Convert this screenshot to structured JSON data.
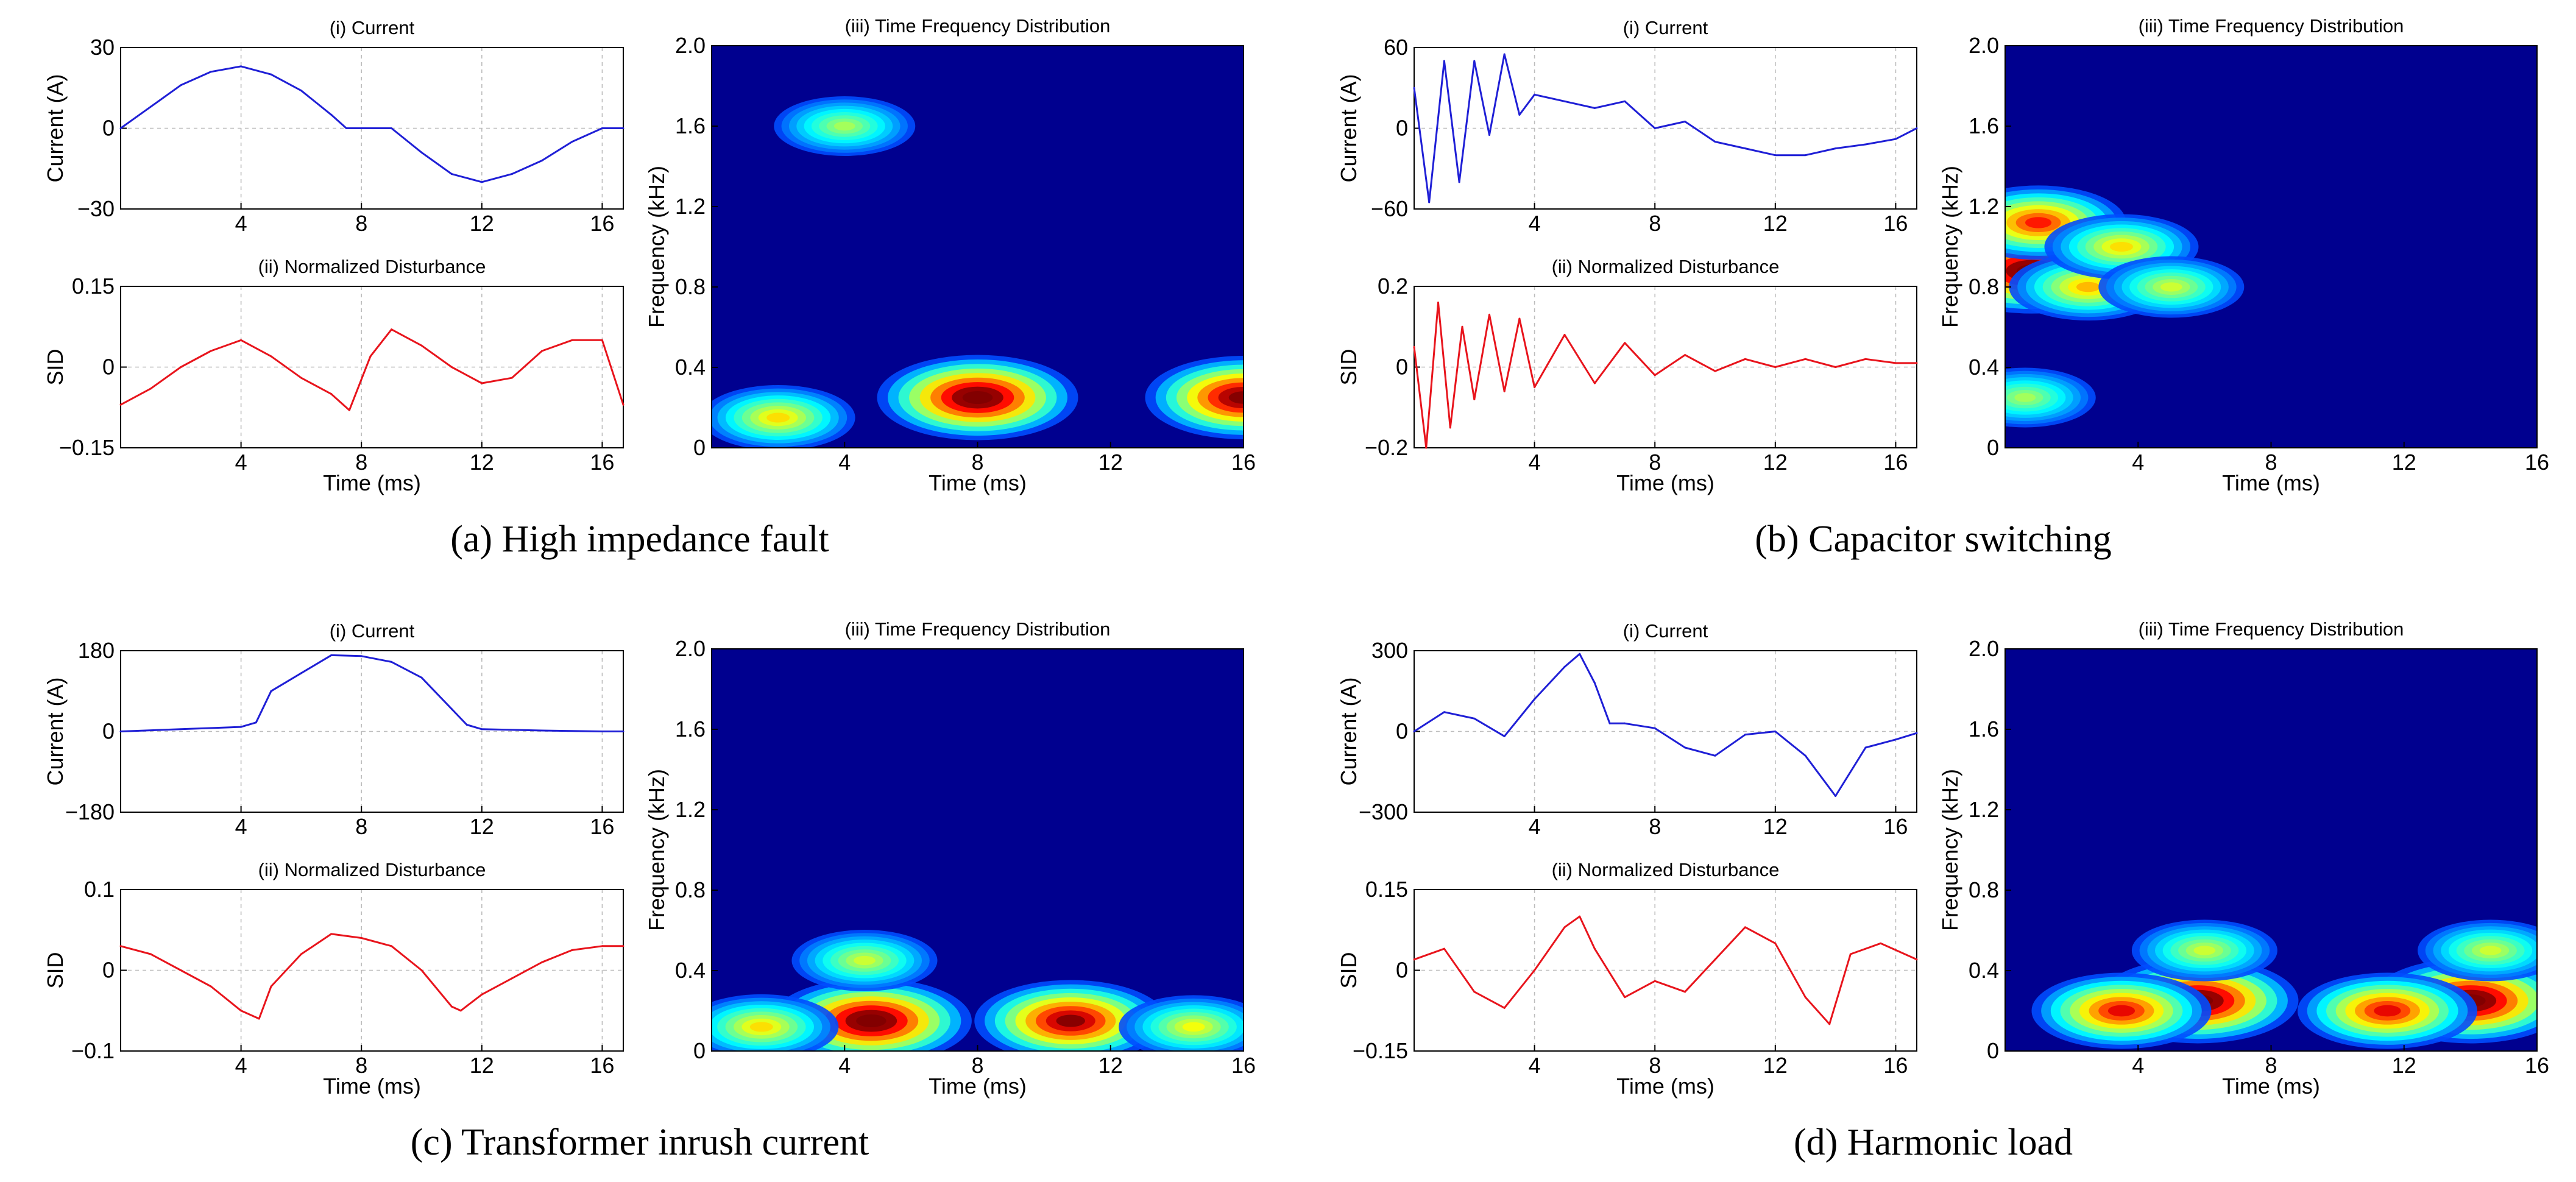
{
  "panels": [
    {
      "id": "a",
      "caption": "(a) High impedance fault",
      "current": {
        "title": "(i) Current",
        "ylabel": "Current (A)",
        "yticks": [
          "30",
          "0",
          "−30"
        ],
        "xticks": [
          "4",
          "8",
          "12",
          "16"
        ]
      },
      "disturbance": {
        "title": "(ii) Normalized Disturbance",
        "ylabel": "SID",
        "xlabel": "Time (ms)",
        "yticks": [
          "0.15",
          "0",
          "−0.15"
        ],
        "xticks": [
          "4",
          "8",
          "12",
          "16"
        ]
      },
      "tfd": {
        "title": "(iii) Time Frequency Distribution",
        "ylabel": "Frequency (kHz)",
        "xlabel": "Time (ms)",
        "yticks": [
          "2.0",
          "1.6",
          "1.2",
          "0.8",
          "0.4",
          "0"
        ],
        "xticks": [
          "4",
          "8",
          "12",
          "16"
        ]
      }
    },
    {
      "id": "b",
      "caption": "(b) Capacitor switching",
      "current": {
        "title": "(i) Current",
        "ylabel": "Current (A)",
        "yticks": [
          "60",
          "0",
          "−60"
        ],
        "xticks": [
          "4",
          "8",
          "12",
          "16"
        ]
      },
      "disturbance": {
        "title": "(ii) Normalized Disturbance",
        "ylabel": "SID",
        "xlabel": "Time (ms)",
        "yticks": [
          "0.2",
          "0",
          "−0.2"
        ],
        "xticks": [
          "4",
          "8",
          "12",
          "16"
        ]
      },
      "tfd": {
        "title": "(iii) Time Frequency Distribution",
        "ylabel": "Frequency (kHz)",
        "xlabel": "Time (ms)",
        "yticks": [
          "2.0",
          "1.6",
          "1.2",
          "0.8",
          "0.4",
          "0"
        ],
        "xticks": [
          "4",
          "8",
          "12",
          "16"
        ]
      }
    },
    {
      "id": "c",
      "caption": "(c) Transformer inrush current",
      "current": {
        "title": "(i) Current",
        "ylabel": "Current (A)",
        "yticks": [
          "180",
          "0",
          "−180"
        ],
        "xticks": [
          "4",
          "8",
          "12",
          "16"
        ]
      },
      "disturbance": {
        "title": "(ii) Normalized Disturbance",
        "ylabel": "SID",
        "xlabel": "Time (ms)",
        "yticks": [
          "0.1",
          "0",
          "−0.1"
        ],
        "xticks": [
          "4",
          "8",
          "12",
          "16"
        ]
      },
      "tfd": {
        "title": "(iii) Time Frequency Distribution",
        "ylabel": "Frequency (kHz)",
        "xlabel": "Time (ms)",
        "yticks": [
          "2.0",
          "1.6",
          "1.2",
          "0.8",
          "0.4",
          "0"
        ],
        "xticks": [
          "4",
          "8",
          "12",
          "16"
        ]
      }
    },
    {
      "id": "d",
      "caption": "(d) Harmonic load",
      "current": {
        "title": "(i) Current",
        "ylabel": "Current (A)",
        "yticks": [
          "300",
          "0",
          "−300"
        ],
        "xticks": [
          "4",
          "8",
          "12",
          "16"
        ]
      },
      "disturbance": {
        "title": "(ii) Normalized Disturbance",
        "ylabel": "SID",
        "xlabel": "Time (ms)",
        "yticks": [
          "0.15",
          "0",
          "−0.15"
        ],
        "xticks": [
          "4",
          "8",
          "12",
          "16"
        ]
      },
      "tfd": {
        "title": "(iii) Time Frequency Distribution",
        "ylabel": "Frequency (kHz)",
        "xlabel": "Time (ms)",
        "yticks": [
          "2.0",
          "1.6",
          "1.2",
          "0.8",
          "0.4",
          "0"
        ],
        "xticks": [
          "4",
          "8",
          "12",
          "16"
        ]
      }
    }
  ],
  "colors": {
    "current_line": "#1f1fd6",
    "disturbance_line": "#e8141c",
    "heatmap_background": "#00008f",
    "colormap": "jet"
  },
  "chart_data": [
    {
      "panel": "a",
      "type": "line",
      "title": "(i) Current",
      "ylabel": "Current (A)",
      "xlim": [
        0,
        16.7
      ],
      "ylim": [
        -30,
        30
      ],
      "x": [
        0,
        1,
        2,
        3,
        4,
        5,
        6,
        7,
        7.5,
        8,
        9,
        10,
        11,
        12,
        13,
        14,
        15,
        16,
        16.7
      ],
      "y": [
        0,
        8,
        16,
        21,
        23,
        20,
        14,
        5,
        0,
        0,
        0,
        -9,
        -17,
        -20,
        -17,
        -12,
        -5,
        0,
        0
      ]
    },
    {
      "panel": "a",
      "type": "line",
      "title": "(ii) Normalized Disturbance",
      "ylabel": "SID",
      "xlabel": "Time (ms)",
      "xlim": [
        0,
        16.7
      ],
      "ylim": [
        -0.15,
        0.15
      ],
      "x": [
        0,
        1,
        2,
        3,
        4,
        5,
        6,
        7,
        7.6,
        8.3,
        9,
        10,
        11,
        12,
        13,
        14,
        15,
        16,
        16.7
      ],
      "y": [
        -0.07,
        -0.04,
        0.0,
        0.03,
        0.05,
        0.02,
        -0.02,
        -0.05,
        -0.08,
        0.02,
        0.07,
        0.04,
        0.0,
        -0.03,
        -0.02,
        0.03,
        0.05,
        0.05,
        -0.07
      ]
    },
    {
      "panel": "a",
      "type": "heatmap",
      "title": "(iii) Time Frequency Distribution",
      "xlabel": "Time (ms)",
      "ylabel": "Frequency (kHz)",
      "xlim": [
        0,
        16
      ],
      "ylim": [
        0,
        2.0
      ],
      "blobs": [
        {
          "t": 8.0,
          "f": 0.25,
          "intensity": 1.0
        },
        {
          "t": 16.0,
          "f": 0.25,
          "intensity": 0.95
        },
        {
          "t": 2.0,
          "f": 0.15,
          "intensity": 0.45
        },
        {
          "t": 4.0,
          "f": 1.6,
          "intensity": 0.3
        }
      ]
    },
    {
      "panel": "b",
      "type": "line",
      "title": "(i) Current",
      "ylabel": "Current (A)",
      "xlim": [
        0,
        16.7
      ],
      "ylim": [
        -60,
        60
      ],
      "x": [
        0,
        0.5,
        1,
        1.5,
        2,
        2.5,
        3,
        3.5,
        4,
        5,
        6,
        7,
        8,
        9,
        10,
        11,
        12,
        13,
        14,
        15,
        16,
        16.7
      ],
      "y": [
        30,
        -55,
        50,
        -40,
        50,
        -5,
        55,
        10,
        25,
        20,
        15,
        20,
        0,
        5,
        -10,
        -15,
        -20,
        -20,
        -15,
        -12,
        -8,
        0
      ]
    },
    {
      "panel": "b",
      "type": "line",
      "title": "(ii) Normalized Disturbance",
      "ylabel": "SID",
      "xlabel": "Time (ms)",
      "xlim": [
        0,
        16.7
      ],
      "ylim": [
        -0.2,
        0.2
      ],
      "x": [
        0,
        0.4,
        0.8,
        1.2,
        1.6,
        2,
        2.5,
        3,
        3.5,
        4,
        5,
        6,
        7,
        8,
        9,
        10,
        11,
        12,
        13,
        14,
        15,
        16,
        16.7
      ],
      "y": [
        0.05,
        -0.2,
        0.16,
        -0.15,
        0.1,
        -0.08,
        0.13,
        -0.06,
        0.12,
        -0.05,
        0.08,
        -0.04,
        0.06,
        -0.02,
        0.03,
        -0.01,
        0.02,
        0.0,
        0.02,
        0.0,
        0.02,
        0.01,
        0.01
      ]
    },
    {
      "panel": "b",
      "type": "heatmap",
      "title": "(iii) Time Frequency Distribution",
      "xlabel": "Time (ms)",
      "ylabel": "Frequency (kHz)",
      "xlim": [
        0,
        16
      ],
      "ylim": [
        0,
        2.0
      ],
      "blobs": [
        {
          "t": 0.8,
          "f": 0.88,
          "intensity": 1.0
        },
        {
          "t": 1.0,
          "f": 1.12,
          "intensity": 0.7
        },
        {
          "t": 2.5,
          "f": 0.8,
          "intensity": 0.5
        },
        {
          "t": 3.5,
          "f": 1.0,
          "intensity": 0.45
        },
        {
          "t": 5.0,
          "f": 0.8,
          "intensity": 0.35
        },
        {
          "t": 0.6,
          "f": 0.25,
          "intensity": 0.3
        }
      ]
    },
    {
      "panel": "c",
      "type": "line",
      "title": "(i) Current",
      "ylabel": "Current (A)",
      "xlim": [
        0,
        16.7
      ],
      "ylim": [
        -180,
        180
      ],
      "x": [
        0,
        2,
        4,
        4.5,
        5,
        6,
        7,
        8,
        9,
        10,
        11,
        11.5,
        12,
        14,
        16,
        16.7
      ],
      "y": [
        0,
        5,
        10,
        20,
        90,
        130,
        170,
        168,
        155,
        120,
        50,
        15,
        5,
        2,
        0,
        0
      ]
    },
    {
      "panel": "c",
      "type": "line",
      "title": "(ii) Normalized Disturbance",
      "ylabel": "SID",
      "xlabel": "Time (ms)",
      "xlim": [
        0,
        16.7
      ],
      "ylim": [
        -0.1,
        0.1
      ],
      "x": [
        0,
        1,
        2,
        3,
        4,
        4.6,
        5,
        6,
        7,
        8,
        9,
        10,
        11,
        11.3,
        12,
        13,
        14,
        15,
        16,
        16.7
      ],
      "y": [
        0.03,
        0.02,
        0.0,
        -0.02,
        -0.05,
        -0.06,
        -0.02,
        0.02,
        0.045,
        0.04,
        0.03,
        0.0,
        -0.045,
        -0.05,
        -0.03,
        -0.01,
        0.01,
        0.025,
        0.03,
        0.03
      ]
    },
    {
      "panel": "c",
      "type": "heatmap",
      "title": "(iii) Time Frequency Distribution",
      "xlabel": "Time (ms)",
      "ylabel": "Frequency (kHz)",
      "xlim": [
        0,
        16
      ],
      "ylim": [
        0,
        2.0
      ],
      "blobs": [
        {
          "t": 4.8,
          "f": 0.15,
          "intensity": 1.0
        },
        {
          "t": 10.8,
          "f": 0.15,
          "intensity": 0.9
        },
        {
          "t": 1.5,
          "f": 0.12,
          "intensity": 0.45
        },
        {
          "t": 14.5,
          "f": 0.12,
          "intensity": 0.4
        },
        {
          "t": 4.6,
          "f": 0.45,
          "intensity": 0.35
        }
      ]
    },
    {
      "panel": "d",
      "type": "line",
      "title": "(i) Current",
      "ylabel": "Current (A)",
      "xlim": [
        0,
        16.7
      ],
      "ylim": [
        -500,
        500
      ],
      "x": [
        0,
        1,
        2,
        3,
        4,
        5,
        5.5,
        6,
        6.5,
        7,
        8,
        9,
        10,
        11,
        12,
        13,
        14,
        15,
        16,
        16.7
      ],
      "y": [
        0,
        120,
        80,
        -30,
        200,
        400,
        480,
        300,
        50,
        50,
        20,
        -100,
        -150,
        -20,
        0,
        -150,
        -400,
        -100,
        -50,
        -10
      ]
    },
    {
      "panel": "d",
      "type": "line",
      "title": "(ii) Normalized Disturbance",
      "ylabel": "SID",
      "xlabel": "Time (ms)",
      "xlim": [
        0,
        16.7
      ],
      "ylim": [
        -0.15,
        0.15
      ],
      "x": [
        0,
        1,
        2,
        3,
        4,
        5,
        5.5,
        6,
        7,
        8,
        9,
        10,
        11,
        12,
        13,
        13.8,
        14.5,
        15.5,
        16.7
      ],
      "y": [
        0.02,
        0.04,
        -0.04,
        -0.07,
        0.0,
        0.08,
        0.1,
        0.04,
        -0.05,
        -0.02,
        -0.04,
        0.02,
        0.08,
        0.05,
        -0.05,
        -0.1,
        0.03,
        0.05,
        0.02
      ]
    },
    {
      "panel": "d",
      "type": "heatmap",
      "title": "(iii) Time Frequency Distribution",
      "xlabel": "Time (ms)",
      "ylabel": "Frequency (kHz)",
      "xlim": [
        0,
        16
      ],
      "ylim": [
        0,
        2.0
      ],
      "blobs": [
        {
          "t": 5.8,
          "f": 0.25,
          "intensity": 1.0
        },
        {
          "t": 14.0,
          "f": 0.25,
          "intensity": 1.0
        },
        {
          "t": 3.5,
          "f": 0.2,
          "intensity": 0.75
        },
        {
          "t": 11.5,
          "f": 0.2,
          "intensity": 0.75
        },
        {
          "t": 6.0,
          "f": 0.5,
          "intensity": 0.35
        },
        {
          "t": 14.6,
          "f": 0.5,
          "intensity": 0.35
        }
      ]
    }
  ]
}
